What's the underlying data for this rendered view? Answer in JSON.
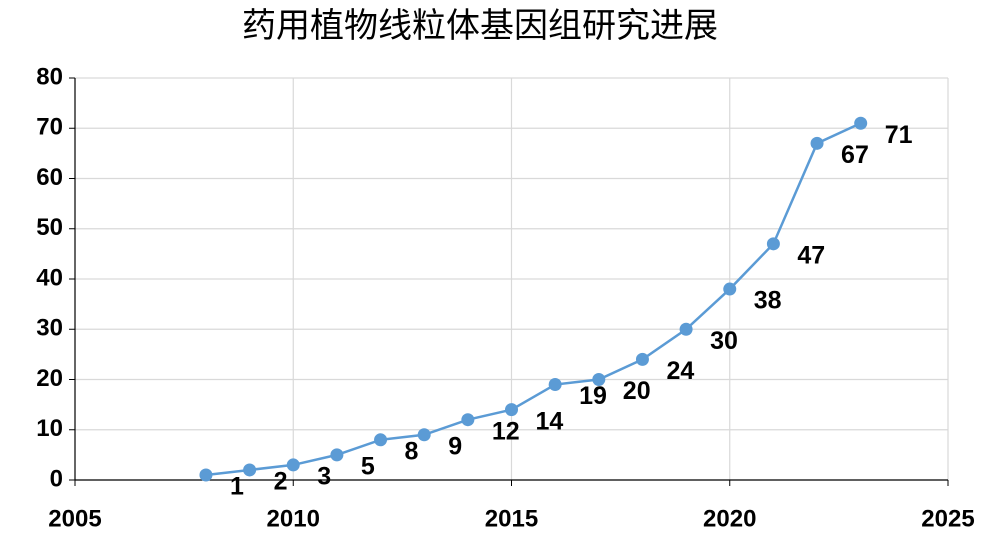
{
  "chart_data": {
    "type": "line",
    "title": "药用植物线粒体基因组研究进展",
    "x": [
      2008,
      2009,
      2010,
      2011,
      2012,
      2013,
      2014,
      2015,
      2016,
      2017,
      2018,
      2019,
      2020,
      2021,
      2022,
      2023
    ],
    "series": [
      {
        "color": "#5b9bd5",
        "values": [
          1,
          2,
          3,
          5,
          8,
          9,
          12,
          14,
          19,
          20,
          24,
          30,
          38,
          47,
          67,
          71
        ]
      }
    ],
    "xlim": [
      2005,
      2025
    ],
    "xticks": [
      2005,
      2010,
      2015,
      2020,
      2025
    ],
    "ylim": [
      0,
      80
    ],
    "yticks": [
      0,
      10,
      20,
      30,
      40,
      50,
      60,
      70,
      80
    ],
    "grid": true
  }
}
